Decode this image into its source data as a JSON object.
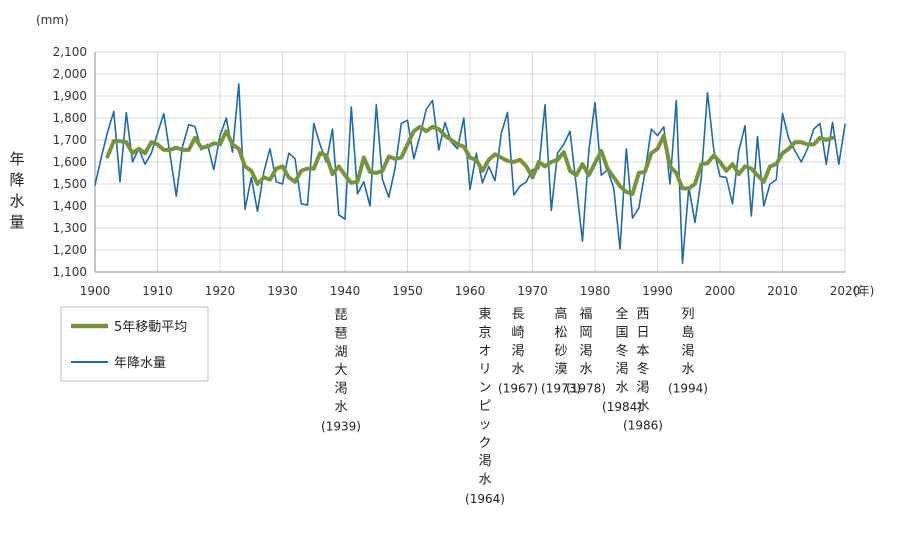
{
  "chart_data": {
    "type": "line",
    "y_unit": "(mm)",
    "ylabel": "年降水量",
    "x_unit": "(年)",
    "ylim": [
      1100,
      2100
    ],
    "yticks": [
      1100,
      1200,
      1300,
      1400,
      1500,
      1600,
      1700,
      1800,
      1900,
      2000,
      2100
    ],
    "ytick_labels": [
      "1,100",
      "1,200",
      "1,300",
      "1,400",
      "1,500",
      "1,600",
      "1,700",
      "1,800",
      "1,900",
      "2,000",
      "2,100"
    ],
    "xlim": [
      1900,
      2020
    ],
    "xticks": [
      1900,
      1910,
      1920,
      1930,
      1940,
      1950,
      1960,
      1970,
      1980,
      1990,
      2000,
      2010,
      2020
    ],
    "grid": true,
    "legend_position": "bottom-left",
    "series": [
      {
        "name": "5年移動平均",
        "color": "#77933c",
        "x": [
          1902,
          1903,
          1904,
          1905,
          1906,
          1907,
          1908,
          1909,
          1910,
          1911,
          1912,
          1913,
          1914,
          1915,
          1916,
          1917,
          1918,
          1919,
          1920,
          1921,
          1922,
          1923,
          1924,
          1925,
          1926,
          1927,
          1928,
          1929,
          1930,
          1931,
          1932,
          1933,
          1934,
          1935,
          1936,
          1937,
          1938,
          1939,
          1940,
          1941,
          1942,
          1943,
          1944,
          1945,
          1946,
          1947,
          1948,
          1949,
          1950,
          1951,
          1952,
          1953,
          1954,
          1955,
          1956,
          1957,
          1958,
          1959,
          1960,
          1961,
          1962,
          1963,
          1964,
          1965,
          1966,
          1967,
          1968,
          1969,
          1970,
          1971,
          1972,
          1973,
          1974,
          1975,
          1976,
          1977,
          1978,
          1979,
          1980,
          1981,
          1982,
          1983,
          1984,
          1985,
          1986,
          1987,
          1988,
          1989,
          1990,
          1991,
          1992,
          1993,
          1994,
          1995,
          1996,
          1997,
          1998,
          1999,
          2000,
          2001,
          2002,
          2003,
          2004,
          2005,
          2006,
          2007,
          2008,
          2009,
          2010,
          2011,
          2012,
          2013,
          2014,
          2015,
          2016,
          2017,
          2018
        ],
        "values": [
          1625,
          1695,
          1695,
          1690,
          1640,
          1660,
          1640,
          1690,
          1680,
          1655,
          1655,
          1665,
          1655,
          1655,
          1710,
          1665,
          1670,
          1685,
          1680,
          1740,
          1680,
          1660,
          1580,
          1560,
          1500,
          1530,
          1520,
          1570,
          1580,
          1530,
          1510,
          1560,
          1570,
          1570,
          1640,
          1630,
          1545,
          1580,
          1540,
          1505,
          1510,
          1620,
          1555,
          1550,
          1560,
          1625,
          1615,
          1620,
          1680,
          1740,
          1760,
          1740,
          1760,
          1750,
          1720,
          1700,
          1680,
          1670,
          1620,
          1610,
          1560,
          1610,
          1635,
          1620,
          1605,
          1600,
          1610,
          1580,
          1530,
          1600,
          1580,
          1600,
          1610,
          1645,
          1560,
          1540,
          1590,
          1540,
          1595,
          1650,
          1570,
          1530,
          1490,
          1465,
          1455,
          1550,
          1555,
          1640,
          1660,
          1720,
          1580,
          1550,
          1480,
          1480,
          1500,
          1590,
          1595,
          1630,
          1600,
          1560,
          1590,
          1545,
          1580,
          1570,
          1540,
          1510,
          1580,
          1590,
          1640,
          1660,
          1690,
          1690,
          1680,
          1680,
          1710,
          1700,
          1710
        ]
      },
      {
        "name": "年降水量",
        "color": "#1f6ba5",
        "x": [
          1900,
          1901,
          1902,
          1903,
          1904,
          1905,
          1906,
          1907,
          1908,
          1909,
          1910,
          1911,
          1912,
          1913,
          1914,
          1915,
          1916,
          1917,
          1918,
          1919,
          1920,
          1921,
          1922,
          1923,
          1924,
          1925,
          1926,
          1927,
          1928,
          1929,
          1930,
          1931,
          1932,
          1933,
          1934,
          1935,
          1936,
          1937,
          1938,
          1939,
          1940,
          1941,
          1942,
          1943,
          1944,
          1945,
          1946,
          1947,
          1948,
          1949,
          1950,
          1951,
          1952,
          1953,
          1954,
          1955,
          1956,
          1957,
          1958,
          1959,
          1960,
          1961,
          1962,
          1963,
          1964,
          1965,
          1966,
          1967,
          1968,
          1969,
          1970,
          1971,
          1972,
          1973,
          1974,
          1975,
          1976,
          1977,
          1978,
          1979,
          1980,
          1981,
          1982,
          1983,
          1984,
          1985,
          1986,
          1987,
          1988,
          1989,
          1990,
          1991,
          1992,
          1993,
          1994,
          1995,
          1996,
          1997,
          1998,
          1999,
          2000,
          2001,
          2002,
          2003,
          2004,
          2005,
          2006,
          2007,
          2008,
          2009,
          2010,
          2011,
          2012,
          2013,
          2014,
          2015,
          2016,
          2017,
          2018,
          2019,
          2020
        ],
        "values": [
          1495,
          1620,
          1735,
          1830,
          1510,
          1825,
          1600,
          1660,
          1590,
          1640,
          1730,
          1820,
          1635,
          1445,
          1670,
          1770,
          1760,
          1655,
          1680,
          1565,
          1720,
          1800,
          1645,
          1955,
          1385,
          1530,
          1375,
          1555,
          1660,
          1510,
          1500,
          1640,
          1615,
          1410,
          1405,
          1775,
          1680,
          1600,
          1750,
          1360,
          1340,
          1850,
          1455,
          1510,
          1400,
          1860,
          1520,
          1440,
          1570,
          1775,
          1790,
          1615,
          1720,
          1840,
          1880,
          1655,
          1780,
          1690,
          1660,
          1800,
          1475,
          1640,
          1505,
          1580,
          1515,
          1730,
          1825,
          1450,
          1490,
          1510,
          1565,
          1570,
          1860,
          1380,
          1640,
          1680,
          1740,
          1490,
          1240,
          1650,
          1870,
          1540,
          1565,
          1480,
          1205,
          1660,
          1345,
          1390,
          1555,
          1750,
          1720,
          1760,
          1500,
          1880,
          1140,
          1485,
          1325,
          1530,
          1915,
          1655,
          1535,
          1530,
          1410,
          1650,
          1765,
          1355,
          1715,
          1400,
          1500,
          1520,
          1820,
          1705,
          1650,
          1600,
          1660,
          1750,
          1775,
          1590,
          1780,
          1590,
          1770
        ]
      }
    ],
    "annotations": [
      {
        "lines": [
          "琵",
          "琶",
          "湖",
          "大",
          "渇",
          "水"
        ],
        "year": "(1939)"
      },
      {
        "lines": [
          "東",
          "京",
          "オ",
          "リ",
          "ン",
          "ピ",
          "ッ",
          "ク",
          "渇",
          "水"
        ],
        "year": "(1964)"
      },
      {
        "lines": [
          "長",
          "崎",
          "渇",
          "水"
        ],
        "year": "(1967)"
      },
      {
        "lines": [
          "高",
          "松",
          "砂",
          "漠"
        ],
        "year": "(1973)"
      },
      {
        "lines": [
          "福",
          "岡",
          "渇",
          "水"
        ],
        "year": "(1978)"
      },
      {
        "lines": [
          "全",
          "国",
          "冬",
          "渇",
          "水"
        ],
        "year": "(1984)"
      },
      {
        "lines": [
          "西",
          "日",
          "本",
          "冬",
          "渇",
          "水"
        ],
        "year": "(1986)"
      },
      {
        "lines": [
          "列",
          "島",
          "渇",
          "水"
        ],
        "year": "(1994)"
      }
    ],
    "legend": [
      {
        "label": "5年移動平均"
      },
      {
        "label": "年降水量"
      }
    ]
  }
}
